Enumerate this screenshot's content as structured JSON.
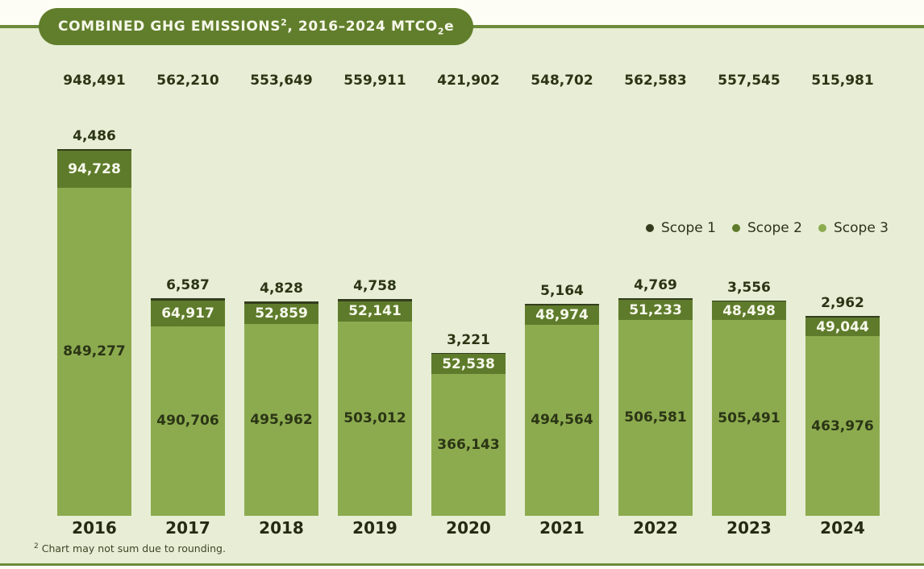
{
  "page": {
    "title": {
      "main": "COMBINED GHG EMISSIONS",
      "sup_marker": "2",
      "range": ", 2016–2024 MTCO",
      "sub_2": "2",
      "suffix": "e"
    },
    "footnote": {
      "marker": "2",
      "text": "Chart may not sum due to rounding."
    }
  },
  "colors": {
    "page_background": "#fdfdf5",
    "panel_background": "#e7eed5",
    "rule_line": "#6d8b3a",
    "title_pill": "#617e2c",
    "scope1": "#333d1e",
    "scope2": "#5e7b2b",
    "scope3": "#8cab4f",
    "dark_text": "#2b3515",
    "light_text": "#f7f9ec"
  },
  "chart_data": {
    "type": "bar",
    "stacked": true,
    "title": "COMBINED GHG EMISSIONS (2), 2016–2024 MTCO2e",
    "xlabel": "",
    "ylabel": "",
    "grid": false,
    "legend_position": "right-middle",
    "ylim": [
      0,
      948491
    ],
    "categories": [
      "2016",
      "2017",
      "2018",
      "2019",
      "2020",
      "2021",
      "2022",
      "2023",
      "2024"
    ],
    "series": [
      {
        "name": "Scope 1",
        "color": "#333d1e",
        "values": [
          4486,
          6587,
          4828,
          4758,
          3221,
          5164,
          4769,
          3556,
          2962
        ]
      },
      {
        "name": "Scope 2",
        "color": "#5e7b2b",
        "values": [
          94728,
          64917,
          52859,
          52141,
          52538,
          48974,
          51233,
          48498,
          49044
        ]
      },
      {
        "name": "Scope 3",
        "color": "#8cab4f",
        "values": [
          849277,
          490706,
          495962,
          503012,
          366143,
          494564,
          506581,
          505491,
          463976
        ]
      }
    ],
    "totals": [
      948491,
      562210,
      553649,
      559911,
      421902,
      548702,
      562583,
      557545,
      515981
    ]
  }
}
